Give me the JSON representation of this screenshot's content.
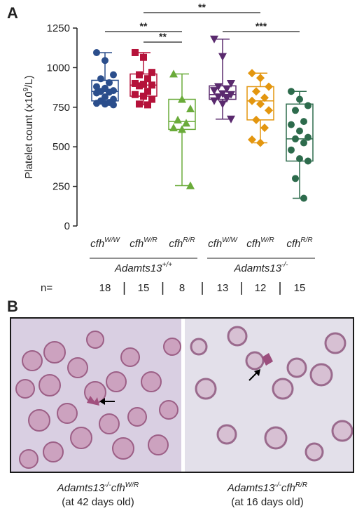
{
  "panels": {
    "a": "A",
    "b": "B"
  },
  "chart_data": {
    "type": "box",
    "ylabel_main": "Platelet count (x10",
    "ylabel_sup": "9",
    "ylabel_end": "/L)",
    "ylim": [
      0,
      1250
    ],
    "yticks": [
      0,
      250,
      500,
      750,
      1000,
      1250
    ],
    "groups": [
      {
        "name": "cfhW/W",
        "base": "cfh",
        "sup": "W/W",
        "color": "#2b4e8c",
        "marker": "circle",
        "n": "18",
        "box": {
          "min": 770,
          "q1": 790,
          "median": 850,
          "q3": 920,
          "max": 1095
        },
        "points": [
          1095,
          1045,
          955,
          930,
          905,
          880,
          870,
          855,
          850,
          845,
          840,
          815,
          800,
          790,
          780,
          775,
          770,
          765
        ]
      },
      {
        "name": "cfhW/R",
        "base": "cfh",
        "sup": "W/R",
        "color": "#b5123a",
        "marker": "square",
        "n": "15",
        "box": {
          "min": 765,
          "q1": 820,
          "median": 890,
          "q3": 960,
          "max": 1095
        },
        "points": [
          1095,
          1065,
          970,
          955,
          930,
          900,
          895,
          890,
          885,
          850,
          830,
          820,
          800,
          770,
          765
        ]
      },
      {
        "name": "cfhR/R",
        "base": "cfh",
        "sup": "R/R",
        "color": "#6aab3a",
        "marker": "triangle",
        "n": "8",
        "box": {
          "min": 255,
          "q1": 610,
          "median": 660,
          "q3": 800,
          "max": 960
        },
        "points": [
          960,
          800,
          740,
          670,
          650,
          620,
          610,
          255
        ]
      },
      {
        "name": "cfhW/W",
        "base": "cfh",
        "sup": "W/W",
        "color": "#5a2a6e",
        "marker": "triangle-down",
        "n": "13",
        "box": {
          "min": 675,
          "q1": 800,
          "median": 830,
          "q3": 885,
          "max": 1180
        },
        "points": [
          1180,
          1070,
          900,
          880,
          865,
          855,
          835,
          830,
          815,
          805,
          790,
          770,
          675
        ]
      },
      {
        "name": "cfhW/R",
        "base": "cfh",
        "sup": "W/R",
        "color": "#e3960f",
        "marker": "diamond",
        "n": "12",
        "box": {
          "min": 525,
          "q1": 670,
          "median": 790,
          "q3": 880,
          "max": 965
        },
        "points": [
          965,
          935,
          880,
          850,
          810,
          790,
          770,
          730,
          670,
          620,
          545,
          525
        ]
      },
      {
        "name": "cfhR/R",
        "base": "cfh",
        "sup": "R/R",
        "color": "#2d6b4c",
        "marker": "circle",
        "n": "15",
        "box": {
          "min": 175,
          "q1": 410,
          "median": 550,
          "q3": 770,
          "max": 850
        },
        "points": [
          850,
          800,
          760,
          730,
          660,
          640,
          600,
          560,
          550,
          525,
          480,
          425,
          410,
          300,
          175
        ]
      }
    ],
    "genotype_labels": [
      {
        "base": "Adamts13",
        "sup": "+/+"
      },
      {
        "base": "Adamts13",
        "sup": "-/-"
      }
    ],
    "n_label": "n=",
    "significance": [
      {
        "from": 0,
        "to": 2,
        "label": "**"
      },
      {
        "from": 1,
        "to": 2,
        "label": "**"
      },
      {
        "from": 1,
        "to": 4,
        "label": "**"
      },
      {
        "from": 3,
        "to": 5,
        "label": "***"
      }
    ]
  },
  "captions": [
    {
      "base": "Adamts13",
      "sup1": "-/-",
      "mid": "cfh",
      "sup2": "W/R",
      "age": "(at 42 days old)"
    },
    {
      "base": "Adamts13",
      "sup1": "-/-",
      "mid": "cfh",
      "sup2": "R/R",
      "age": "(at 16 days old)"
    }
  ]
}
